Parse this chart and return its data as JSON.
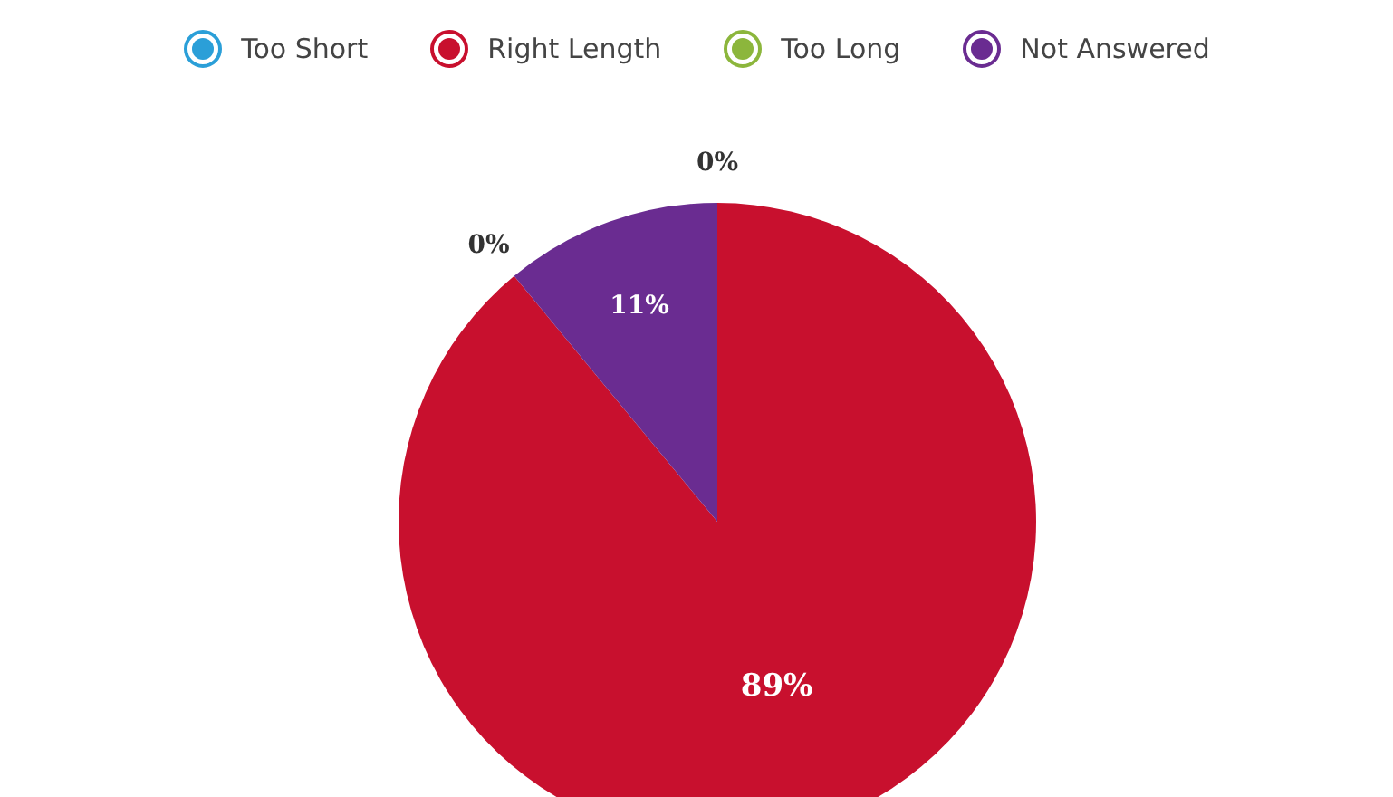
{
  "chart_data": {
    "type": "pie",
    "categories": [
      "Too Short",
      "Right Length",
      "Too Long",
      "Not Answered"
    ],
    "values": [
      0,
      89,
      0,
      11
    ],
    "colors": [
      "#2b9fd8",
      "#c8102e",
      "#8cb63c",
      "#6a2c91"
    ],
    "value_labels": [
      "0%",
      "89%",
      "0%",
      "11%"
    ],
    "legend": "top"
  }
}
